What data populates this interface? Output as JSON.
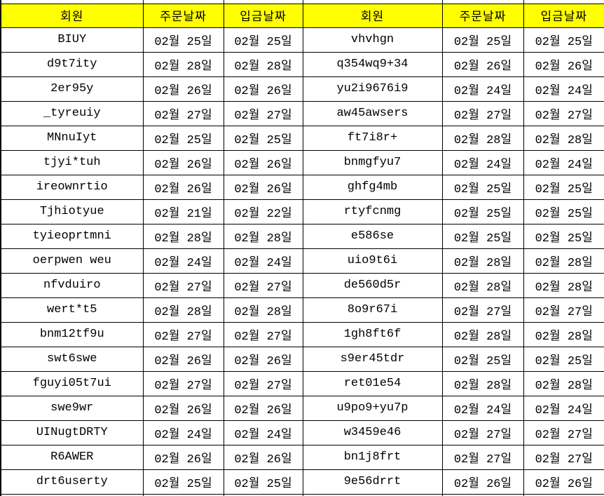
{
  "columns": {
    "member": "회원",
    "order_date": "주문날짜",
    "deposit_date": "입금날짜"
  },
  "colors": {
    "header_bg": "#FFFF00",
    "border": "#000000",
    "text": "#000000",
    "row_bg": "#FFFFFF"
  },
  "rows_left": [
    {
      "member": "BIUY",
      "order_date": "02월 25일",
      "deposit_date": "02월 25일"
    },
    {
      "member": "d9t7ity",
      "order_date": "02월 28일",
      "deposit_date": "02월 28일"
    },
    {
      "member": "2er95y",
      "order_date": "02월 26일",
      "deposit_date": "02월 26일"
    },
    {
      "member": "_tyreuiy",
      "order_date": "02월 27일",
      "deposit_date": "02월 27일"
    },
    {
      "member": "MNnuIyt",
      "order_date": "02월 25일",
      "deposit_date": "02월 25일"
    },
    {
      "member": "tjyi*tuh",
      "order_date": "02월 26일",
      "deposit_date": "02월 26일"
    },
    {
      "member": "ireownrtio",
      "order_date": "02월 26일",
      "deposit_date": "02월 26일"
    },
    {
      "member": "Tjhiotyue",
      "order_date": "02월 21일",
      "deposit_date": "02월 22일"
    },
    {
      "member": "tyieoprtmni",
      "order_date": "02월 28일",
      "deposit_date": "02월 28일"
    },
    {
      "member": "oerpwen weu",
      "order_date": "02월 24일",
      "deposit_date": "02월 24일"
    },
    {
      "member": "nfvduiro",
      "order_date": "02월 27일",
      "deposit_date": "02월 27일"
    },
    {
      "member": "wert*t5",
      "order_date": "02월 28일",
      "deposit_date": "02월 28일"
    },
    {
      "member": "bnm12tf9u",
      "order_date": "02월 27일",
      "deposit_date": "02월 27일"
    },
    {
      "member": "swt6swe",
      "order_date": "02월 26일",
      "deposit_date": "02월 26일"
    },
    {
      "member": "fguyi05t7ui",
      "order_date": "02월 27일",
      "deposit_date": "02월 27일"
    },
    {
      "member": "swe9wr",
      "order_date": "02월 26일",
      "deposit_date": "02월 26일"
    },
    {
      "member": "UINugtDRTY",
      "order_date": "02월 24일",
      "deposit_date": "02월 24일"
    },
    {
      "member": "R6AWER",
      "order_date": "02월 26일",
      "deposit_date": "02월 26일"
    },
    {
      "member": "drt6userty",
      "order_date": "02월 25일",
      "deposit_date": "02월 25일"
    }
  ],
  "rows_right": [
    {
      "member": "vhvhgn",
      "order_date": "02월 25일",
      "deposit_date": "02월 25일"
    },
    {
      "member": "q354wq9+34",
      "order_date": "02월 26일",
      "deposit_date": "02월 26일"
    },
    {
      "member": "yu2i9676i9",
      "order_date": "02월 24일",
      "deposit_date": "02월 24일"
    },
    {
      "member": "aw45awsers",
      "order_date": "02월 27일",
      "deposit_date": "02월 27일"
    },
    {
      "member": "ft7i8r+",
      "order_date": "02월 28일",
      "deposit_date": "02월 28일"
    },
    {
      "member": "bnmgfyu7",
      "order_date": "02월 24일",
      "deposit_date": "02월 24일"
    },
    {
      "member": "ghfg4mb",
      "order_date": "02월 25일",
      "deposit_date": "02월 25일"
    },
    {
      "member": "rtyfcnmg",
      "order_date": "02월 25일",
      "deposit_date": "02월 25일"
    },
    {
      "member": "e586se",
      "order_date": "02월 25일",
      "deposit_date": "02월 25일"
    },
    {
      "member": "uio9t6i",
      "order_date": "02월 28일",
      "deposit_date": "02월 28일"
    },
    {
      "member": "de560d5r",
      "order_date": "02월 28일",
      "deposit_date": "02월 28일"
    },
    {
      "member": "8o9r67i",
      "order_date": "02월 27일",
      "deposit_date": "02월 27일"
    },
    {
      "member": "1gh8ft6f",
      "order_date": "02월 28일",
      "deposit_date": "02월 28일"
    },
    {
      "member": "s9er45tdr",
      "order_date": "02월 25일",
      "deposit_date": "02월 25일"
    },
    {
      "member": "ret01e54",
      "order_date": "02월 28일",
      "deposit_date": "02월 28일"
    },
    {
      "member": "u9po9+yu7p",
      "order_date": "02월 24일",
      "deposit_date": "02월 24일"
    },
    {
      "member": "w3459e46",
      "order_date": "02월 27일",
      "deposit_date": "02월 27일"
    },
    {
      "member": "bn1j8frt",
      "order_date": "02월 27일",
      "deposit_date": "02월 27일"
    },
    {
      "member": "9e56drrt",
      "order_date": "02월 26일",
      "deposit_date": "02월 26일"
    }
  ]
}
